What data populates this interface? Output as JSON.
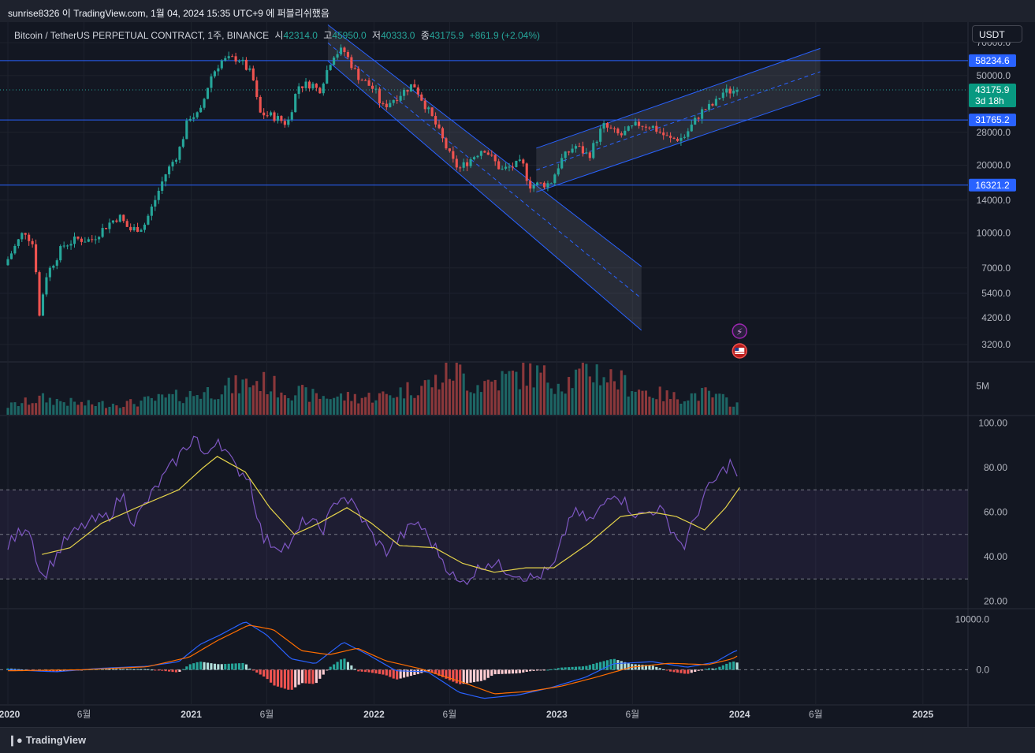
{
  "header": {
    "publisher_line": "sunrise8326 이 TradingView.com, 1월 04, 2024 15:35 UTC+9 에 퍼블리쉬했음"
  },
  "legend": {
    "symbol": "Bitcoin / TetherUS PERPETUAL CONTRACT, 1주, BINANCE",
    "open_label": "시",
    "open_value": "42314.0",
    "high_label": "고",
    "high_value": "45950.0",
    "low_label": "저",
    "low_value": "40333.0",
    "close_label": "종",
    "close_value": "43175.9",
    "change": "+861.9 (+2.04%)"
  },
  "toolbar": {
    "currency": "USDT"
  },
  "footer": {
    "brand": "TradingView",
    "logo_icon": "tradingview-logo-icon"
  },
  "colors": {
    "background": "#131722",
    "up": "#26a69a",
    "down": "#ef5350",
    "level_line": "#2962ff",
    "rsi": "#7e57c2",
    "rsi_ma": "#e6d44a",
    "macd": "#2962ff",
    "signal": "#ff6d00"
  },
  "chart_data": [
    {
      "type": "candlestick",
      "title": "Bitcoin / TetherUS PERPETUAL CONTRACT, 1주, BINANCE",
      "y_scale": "log",
      "ylim": [
        2700,
        85000
      ],
      "y_ticks": [
        "70000.0",
        "50000.0",
        "28000.0",
        "20000.0",
        "14000.0",
        "10000.0",
        "7000.0",
        "5400.0",
        "4200.0",
        "3200.0"
      ],
      "y_tick_values": [
        70000,
        50000,
        28000,
        20000,
        14000,
        10000,
        7000,
        5400,
        4200,
        3200
      ],
      "x_ticks": [
        "2020",
        "6월",
        "2021",
        "6월",
        "2022",
        "6월",
        "2023",
        "6월",
        "2024",
        "6월",
        "2025"
      ],
      "x_tick_dates": [
        "2020-01-01",
        "2020-06-01",
        "2021-01-01",
        "2021-06-01",
        "2022-01-01",
        "2022-06-01",
        "2023-01-01",
        "2023-06-01",
        "2024-01-01",
        "2024-06-01",
        "2025-01-01"
      ],
      "x_range": [
        "2020-01-01",
        "2025-04-01"
      ],
      "last_price": {
        "value": "43175.9",
        "countdown": "3d 18h"
      },
      "horizontal_levels": [
        {
          "value": 58234.6,
          "label": "58234.6"
        },
        {
          "value": 31765.2,
          "label": "31765.2"
        },
        {
          "value": 16321.2,
          "label": "16321.2"
        }
      ],
      "channels": [
        {
          "name": "",
          "upper": [
            [
              "2021-10-01",
              84000
            ],
            [
              "2022-10-24",
              16800
            ]
          ],
          "lower": [
            [
              "2021-10-01",
              58000
            ],
            [
              "2022-10-24",
              11600
            ]
          ],
          "extend_to": "2023-06-19",
          "extended_upper": 7100,
          "extended_lower": 3700
        },
        {
          "name": "",
          "upper": [
            [
              "2022-11-21",
              23800
            ],
            [
              "2024-06-10",
              66000
            ]
          ],
          "lower": [
            [
              "2022-11-21",
              15200
            ],
            [
              "2024-06-10",
              41000
            ]
          ]
        }
      ],
      "price_path": [
        [
          "2020-01-01",
          7200
        ],
        [
          "2020-02-10",
          10300
        ],
        [
          "2020-03-02",
          8600
        ],
        [
          "2020-03-09",
          4000
        ],
        [
          "2020-03-23",
          6400
        ],
        [
          "2020-04-27",
          8800
        ],
        [
          "2020-05-25",
          9400
        ],
        [
          "2020-06-22",
          9300
        ],
        [
          "2020-07-27",
          11000
        ],
        [
          "2020-08-17",
          11900
        ],
        [
          "2020-09-07",
          10300
        ],
        [
          "2020-10-05",
          10700
        ],
        [
          "2020-10-26",
          13700
        ],
        [
          "2020-11-16",
          18000
        ],
        [
          "2020-12-14",
          23000
        ],
        [
          "2021-01-04",
          33000
        ],
        [
          "2021-01-25",
          33500
        ],
        [
          "2021-02-15",
          49000
        ],
        [
          "2021-03-08",
          58000
        ],
        [
          "2021-04-12",
          60000
        ],
        [
          "2021-05-10",
          50000
        ],
        [
          "2021-05-24",
          34000
        ],
        [
          "2021-06-21",
          33000
        ],
        [
          "2021-07-19",
          30500
        ],
        [
          "2021-08-09",
          45000
        ],
        [
          "2021-09-06",
          46000
        ],
        [
          "2021-09-20",
          42500
        ],
        [
          "2021-10-18",
          62000
        ],
        [
          "2021-11-08",
          65000
        ],
        [
          "2021-12-06",
          50000
        ],
        [
          "2022-01-10",
          43000
        ],
        [
          "2022-01-24",
          36000
        ],
        [
          "2022-03-28",
          46000
        ],
        [
          "2022-05-09",
          31000
        ],
        [
          "2022-06-13",
          21000
        ],
        [
          "2022-06-27",
          19200
        ],
        [
          "2022-08-15",
          24000
        ],
        [
          "2022-09-19",
          19000
        ],
        [
          "2022-10-31",
          20500
        ],
        [
          "2022-11-14",
          16300
        ],
        [
          "2022-12-26",
          16600
        ],
        [
          "2023-01-16",
          21000
        ],
        [
          "2023-02-13",
          24500
        ],
        [
          "2023-03-13",
          22000
        ],
        [
          "2023-04-10",
          30000
        ],
        [
          "2023-05-15",
          27000
        ],
        [
          "2023-06-19",
          30500
        ],
        [
          "2023-07-17",
          29800
        ],
        [
          "2023-08-21",
          26000
        ],
        [
          "2023-09-18",
          26500
        ],
        [
          "2023-10-23",
          34500
        ],
        [
          "2023-11-20",
          37500
        ],
        [
          "2023-12-04",
          42000
        ],
        [
          "2024-01-01",
          43175.9
        ]
      ],
      "events": [
        {
          "icon": "lightning-icon",
          "date": "2024-01-01"
        },
        {
          "icon": "us-flag-icon",
          "date": "2024-01-01"
        }
      ]
    },
    {
      "type": "bar",
      "title": "",
      "y_ticks": [
        "5M"
      ],
      "y_tick_values": [
        5000000
      ],
      "ylim": [
        0,
        9000000
      ],
      "series": [
        {
          "name": "",
          "values_path": [
            [
              "2020-01-01",
              1500000
            ],
            [
              "2020-03-09",
              2800000
            ],
            [
              "2020-06-01",
              1800000
            ],
            [
              "2020-09-01",
              2000000
            ],
            [
              "2021-01-04",
              3500000
            ],
            [
              "2021-02-15",
              4200000
            ],
            [
              "2021-05-17",
              5800000
            ],
            [
              "2021-06-21",
              4700000
            ],
            [
              "2021-09-06",
              3200000
            ],
            [
              "2021-12-06",
              3000000
            ],
            [
              "2022-01-24",
              3300000
            ],
            [
              "2022-05-09",
              5800000
            ],
            [
              "2022-06-13",
              8000000
            ],
            [
              "2022-07-18",
              5000000
            ],
            [
              "2022-11-07",
              7200000
            ],
            [
              "2023-01-16",
              5500000
            ],
            [
              "2023-03-13",
              7800000
            ],
            [
              "2023-06-19",
              4200000
            ],
            [
              "2023-08-21",
              3000000
            ],
            [
              "2023-10-23",
              3600000
            ],
            [
              "2024-01-01",
              1800000
            ]
          ]
        }
      ]
    },
    {
      "type": "line",
      "title": "",
      "ylim": [
        17,
        103
      ],
      "y_ticks": [
        "100.00",
        "80.00",
        "60.00",
        "40.00",
        "20.00"
      ],
      "y_tick_values": [
        100,
        80,
        60,
        40,
        20
      ],
      "bands": {
        "upper": 70,
        "middle": 50,
        "lower": 30
      },
      "series": [
        {
          "name": "",
          "values_path": [
            [
              "2020-01-01",
              45
            ],
            [
              "2020-02-10",
              55
            ],
            [
              "2020-03-09",
              30
            ],
            [
              "2020-04-27",
              48
            ],
            [
              "2020-06-08",
              55
            ],
            [
              "2020-07-20",
              58
            ],
            [
              "2020-08-17",
              68
            ],
            [
              "2020-09-07",
              55
            ],
            [
              "2020-10-26",
              72
            ],
            [
              "2020-12-14",
              87
            ],
            [
              "2021-01-11",
              95
            ],
            [
              "2021-01-25",
              83
            ],
            [
              "2021-02-22",
              94
            ],
            [
              "2021-03-29",
              80
            ],
            [
              "2021-04-26",
              76
            ],
            [
              "2021-05-24",
              48
            ],
            [
              "2021-06-21",
              45
            ],
            [
              "2021-07-19",
              45
            ],
            [
              "2021-08-16",
              57
            ],
            [
              "2021-09-20",
              52
            ],
            [
              "2021-10-25",
              68
            ],
            [
              "2021-11-22",
              63
            ],
            [
              "2021-12-27",
              50
            ],
            [
              "2022-01-24",
              42
            ],
            [
              "2022-03-28",
              56
            ],
            [
              "2022-05-09",
              42
            ],
            [
              "2022-06-20",
              27
            ],
            [
              "2022-08-15",
              38
            ],
            [
              "2022-09-26",
              34
            ],
            [
              "2022-11-14",
              30
            ],
            [
              "2022-12-26",
              35
            ],
            [
              "2023-01-30",
              60
            ],
            [
              "2023-03-13",
              56
            ],
            [
              "2023-04-24",
              70
            ],
            [
              "2023-06-12",
              58
            ],
            [
              "2023-07-24",
              62
            ],
            [
              "2023-09-11",
              44
            ],
            [
              "2023-10-23",
              68
            ],
            [
              "2023-12-04",
              80
            ],
            [
              "2023-12-18",
              83
            ],
            [
              "2023-12-25",
              74
            ],
            [
              "2024-01-01",
              75
            ]
          ]
        },
        {
          "name": "",
          "values_path": [
            [
              "2020-03-09",
              41
            ],
            [
              "2020-05-04",
              44
            ],
            [
              "2020-07-06",
              55
            ],
            [
              "2020-09-14",
              62
            ],
            [
              "2020-12-07",
              70
            ],
            [
              "2021-01-25",
              80
            ],
            [
              "2021-02-22",
              85
            ],
            [
              "2021-04-19",
              78
            ],
            [
              "2021-06-07",
              62
            ],
            [
              "2021-07-26",
              50
            ],
            [
              "2021-09-13",
              55
            ],
            [
              "2021-11-08",
              62
            ],
            [
              "2021-12-27",
              55
            ],
            [
              "2022-02-21",
              45
            ],
            [
              "2022-05-02",
              44
            ],
            [
              "2022-06-27",
              37
            ],
            [
              "2022-08-29",
              33
            ],
            [
              "2022-10-31",
              35
            ],
            [
              "2022-12-26",
              35
            ],
            [
              "2023-03-06",
              46
            ],
            [
              "2023-05-08",
              58
            ],
            [
              "2023-07-10",
              60
            ],
            [
              "2023-08-28",
              58
            ],
            [
              "2023-10-23",
              52
            ],
            [
              "2023-12-04",
              62
            ],
            [
              "2024-01-01",
              71
            ]
          ]
        }
      ]
    },
    {
      "type": "line",
      "title": "",
      "ylim": [
        -7000,
        12000
      ],
      "y_ticks": [
        "10000.0",
        "0.0"
      ],
      "y_tick_values": [
        10000,
        0
      ],
      "series": [
        {
          "name": "",
          "values_path": [
            [
              "2020-01-01",
              0
            ],
            [
              "2020-04-06",
              -400
            ],
            [
              "2020-07-06",
              300
            ],
            [
              "2020-10-05",
              700
            ],
            [
              "2020-12-07",
              1600
            ],
            [
              "2021-01-18",
              5000
            ],
            [
              "2021-03-01",
              7000
            ],
            [
              "2021-04-19",
              9600
            ],
            [
              "2021-05-31",
              7000
            ],
            [
              "2021-07-19",
              2200
            ],
            [
              "2021-09-06",
              1200
            ],
            [
              "2021-11-01",
              5500
            ],
            [
              "2021-12-20",
              3000
            ],
            [
              "2022-02-14",
              -200
            ],
            [
              "2022-04-18",
              -400
            ],
            [
              "2022-06-20",
              -4500
            ],
            [
              "2022-08-08",
              -5700
            ],
            [
              "2022-10-17",
              -5000
            ],
            [
              "2022-12-19",
              -3600
            ],
            [
              "2023-02-27",
              -1500
            ],
            [
              "2023-04-24",
              1200
            ],
            [
              "2023-07-10",
              1600
            ],
            [
              "2023-09-18",
              500
            ],
            [
              "2023-11-13",
              1500
            ],
            [
              "2023-12-18",
              3500
            ],
            [
              "2024-01-01",
              4000
            ]
          ]
        },
        {
          "name": "",
          "values_path": [
            [
              "2020-01-01",
              -200
            ],
            [
              "2020-06-01",
              0
            ],
            [
              "2020-10-05",
              600
            ],
            [
              "2020-12-28",
              2500
            ],
            [
              "2021-02-22",
              5800
            ],
            [
              "2021-04-26",
              8900
            ],
            [
              "2021-06-14",
              8000
            ],
            [
              "2021-08-09",
              3800
            ],
            [
              "2021-10-04",
              3000
            ],
            [
              "2021-11-29",
              4300
            ],
            [
              "2022-01-24",
              1800
            ],
            [
              "2022-04-04",
              200
            ],
            [
              "2022-06-27",
              -2500
            ],
            [
              "2022-08-29",
              -4800
            ],
            [
              "2022-11-07",
              -4300
            ],
            [
              "2023-01-09",
              -3300
            ],
            [
              "2023-03-20",
              -1500
            ],
            [
              "2023-05-29",
              500
            ],
            [
              "2023-08-14",
              1300
            ],
            [
              "2023-10-30",
              1000
            ],
            [
              "2023-12-18",
              2200
            ],
            [
              "2024-01-01",
              3000
            ]
          ]
        }
      ]
    }
  ]
}
